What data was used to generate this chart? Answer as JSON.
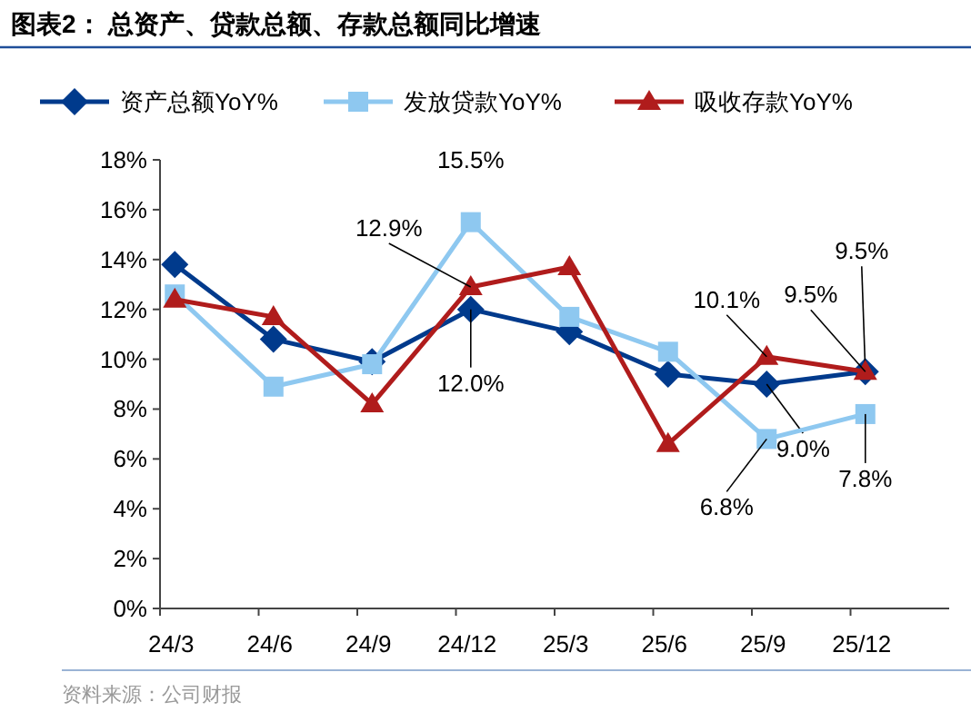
{
  "chart_data": {
    "type": "line",
    "title": "图表2：  总资产、贷款总额、存款总额同比增速",
    "categories": [
      "24/3",
      "24/6",
      "24/9",
      "24/12",
      "25/3",
      "25/6",
      "25/9",
      "25/12"
    ],
    "series": [
      {
        "name": "资产总额YoY%",
        "color": "#003a8c",
        "marker": "diamond",
        "values": [
          13.8,
          10.8,
          9.9,
          12.0,
          11.1,
          9.4,
          9.0,
          9.5
        ],
        "value_labels": [
          null,
          null,
          null,
          "12.0%",
          null,
          null,
          "9.0%",
          "9.5%"
        ]
      },
      {
        "name": "发放贷款YoY%",
        "color": "#8ec8f0",
        "marker": "square",
        "values": [
          12.6,
          8.9,
          9.8,
          15.5,
          11.7,
          10.3,
          6.8,
          7.8
        ],
        "value_labels": [
          null,
          null,
          null,
          "15.5%",
          null,
          null,
          "6.8%",
          "7.8%"
        ]
      },
      {
        "name": "吸收存款YoY%",
        "color": "#b01c1c",
        "marker": "triangle",
        "values": [
          12.4,
          11.7,
          8.2,
          12.9,
          13.7,
          6.6,
          10.1,
          9.5
        ],
        "value_labels": [
          null,
          null,
          null,
          "12.9%",
          null,
          null,
          "10.1%",
          "9.5%"
        ]
      }
    ],
    "ylim": [
      0,
      18
    ],
    "yticks": [
      {
        "value": 0,
        "label": "0%"
      },
      {
        "value": 2,
        "label": "2%"
      },
      {
        "value": 4,
        "label": "4%"
      },
      {
        "value": 6,
        "label": "6%"
      },
      {
        "value": 8,
        "label": "8%"
      },
      {
        "value": 10,
        "label": "10%"
      },
      {
        "value": 12,
        "label": "12%"
      },
      {
        "value": 14,
        "label": "14%"
      },
      {
        "value": 16,
        "label": "16%"
      },
      {
        "value": 18,
        "label": "18%"
      }
    ],
    "grid": false,
    "legend": "top",
    "line_style": "solid",
    "annotations": [
      "资料来源：公司财报"
    ]
  }
}
